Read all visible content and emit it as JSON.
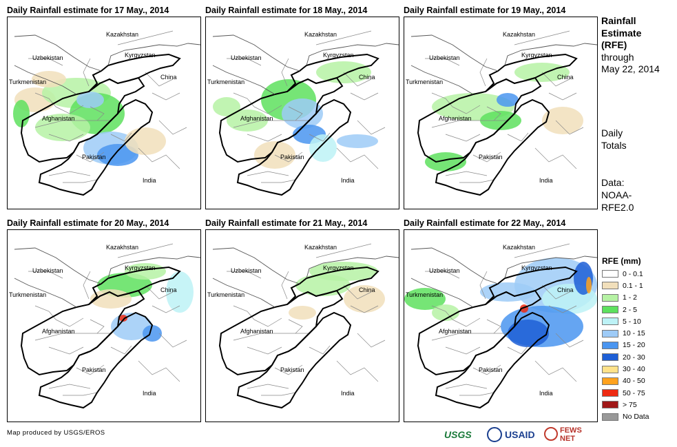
{
  "panels": [
    {
      "title": "Daily Rainfall estimate for 17 May., 2014",
      "rain_extent": "moderate: Afghanistan, northern Pakistan"
    },
    {
      "title": "Daily Rainfall estimate for 18 May., 2014",
      "rain_extent": "heavy: northeast Afghanistan, north Pakistan"
    },
    {
      "title": "Daily Rainfall estimate for 19 May., 2014",
      "rain_extent": "light: scattered"
    },
    {
      "title": "Daily Rainfall estimate for 20 May., 2014",
      "rain_extent": "light: Kyrgyzstan, northeast Pakistan"
    },
    {
      "title": "Daily Rainfall estimate for 21 May., 2014",
      "rain_extent": "very light: scattered"
    },
    {
      "title": "Daily Rainfall estimate for 22 May., 2014",
      "rain_extent": "heavy: western China, northern India"
    }
  ],
  "country_labels": [
    "Kazakhstan",
    "Uzbekistan",
    "Kyrgyzstan",
    "Turkmenistan",
    "China",
    "Afghanistan",
    "Pakistan",
    "India"
  ],
  "side": {
    "title_bold_lines": [
      "Rainfall",
      "Estimate",
      "(RFE)"
    ],
    "title_plain_lines": [
      "through",
      "May 22, 2014"
    ],
    "daily_lines": [
      "Daily",
      "Totals"
    ],
    "data_lines": [
      "Data:",
      "NOAA-",
      "RFE2.0"
    ]
  },
  "legend": {
    "title": "RFE (mm)",
    "items": [
      {
        "label": "0 - 0.1",
        "color": "#ffffff"
      },
      {
        "label": "0.1 - 1",
        "color": "#f1dfbb"
      },
      {
        "label": "1 - 2",
        "color": "#b6f2a4"
      },
      {
        "label": "2 - 5",
        "color": "#5ee15e"
      },
      {
        "label": "5 - 10",
        "color": "#bdf2f6"
      },
      {
        "label": "10 - 15",
        "color": "#9ecbf7"
      },
      {
        "label": "15 - 20",
        "color": "#4a95f0"
      },
      {
        "label": "20 - 30",
        "color": "#1e5fd6"
      },
      {
        "label": "30 - 40",
        "color": "#ffe28a"
      },
      {
        "label": "40 - 50",
        "color": "#ffa21e"
      },
      {
        "label": "50 - 75",
        "color": "#ee2a12"
      },
      {
        "label": "> 75",
        "color": "#a01818"
      },
      {
        "label": "No Data",
        "color": "#999999"
      }
    ]
  },
  "footer": {
    "credit": "Map produced by USGS/EROS"
  },
  "logos": {
    "usgs": "USGS",
    "usaid": "USAID",
    "fews": "FEWS NET"
  }
}
